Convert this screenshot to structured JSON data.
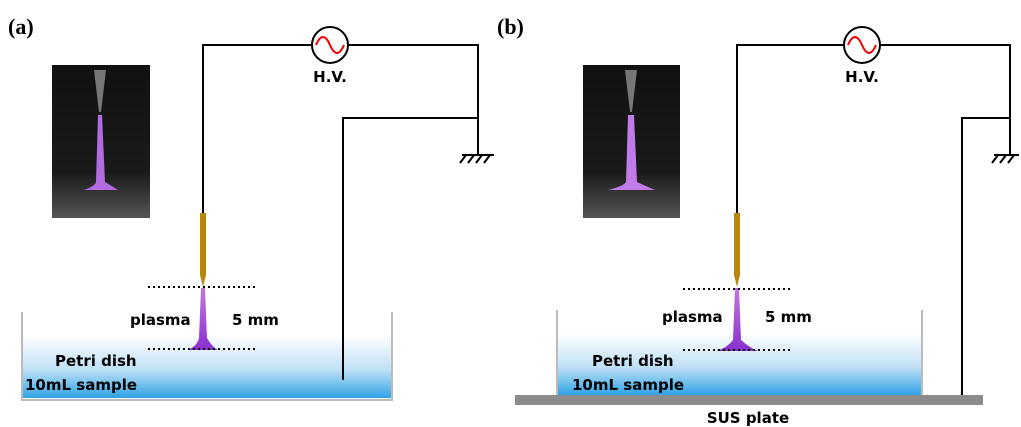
{
  "panels": [
    {
      "label": "(a)",
      "hv_label": "H.V.",
      "plasma_label": "plasma",
      "gap_label": "5 mm",
      "dish_label": "Petri dish",
      "sample_label": "10mL sample"
    },
    {
      "label": "(b)",
      "hv_label": "H.V.",
      "plasma_label": "plasma",
      "gap_label": "5 mm",
      "dish_label": "Petri dish",
      "sample_label": "10mL sample",
      "plate_label": "SUS plate"
    }
  ]
}
